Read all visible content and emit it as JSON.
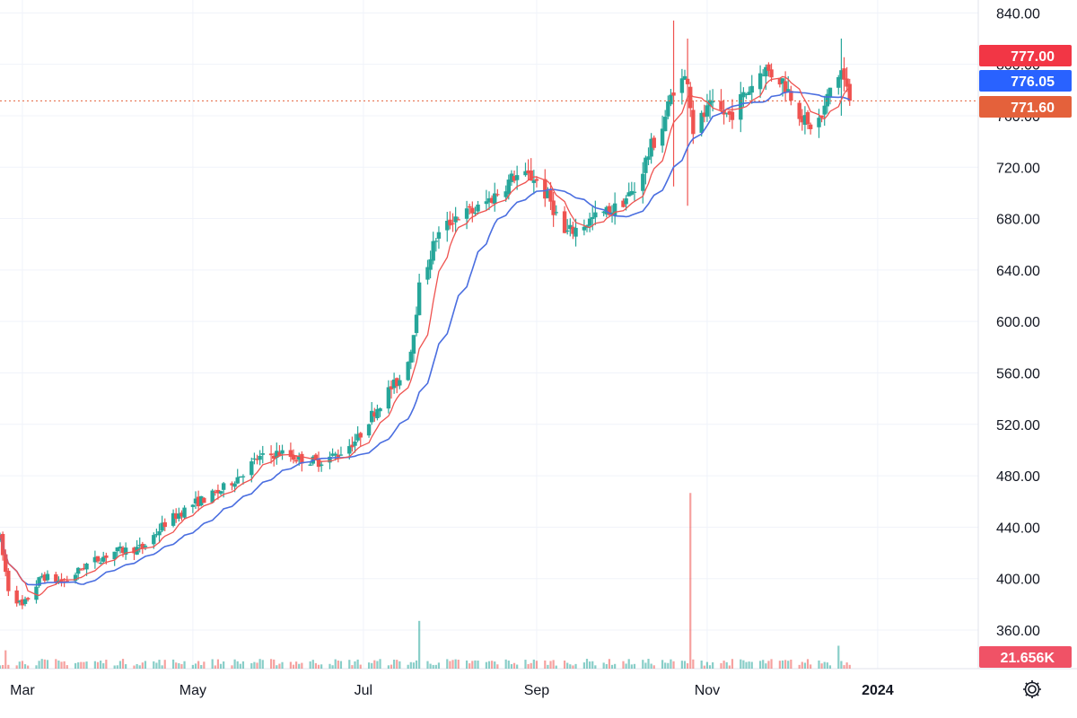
{
  "chart_data": {
    "type": "candlestick",
    "price_axis": {
      "ticks": [
        "360.00",
        "400.00",
        "440.00",
        "480.00",
        "520.00",
        "560.00",
        "600.00",
        "640.00",
        "680.00",
        "720.00",
        "760.00",
        "800.00",
        "840.00"
      ],
      "range": [
        330,
        850
      ]
    },
    "time_axis": {
      "ticks": [
        {
          "label": "Mar",
          "date": "2023-03-01",
          "bold": false
        },
        {
          "label": "May",
          "date": "2023-05-01",
          "bold": false
        },
        {
          "label": "Jul",
          "date": "2023-07-01",
          "bold": false
        },
        {
          "label": "Sep",
          "date": "2023-09-01",
          "bold": false
        },
        {
          "label": "Nov",
          "date": "2023-11-01",
          "bold": false
        },
        {
          "label": "2024",
          "date": "2024-01-01",
          "bold": true
        }
      ],
      "range": [
        "2023-02-21",
        "2024-02-06"
      ]
    },
    "price_anchors": [
      [
        "2023-02-21",
        431
      ],
      [
        "2023-02-24",
        392
      ],
      [
        "2023-03-01",
        378
      ],
      [
        "2023-03-08",
        402
      ],
      [
        "2023-03-16",
        397
      ],
      [
        "2023-03-24",
        411
      ],
      [
        "2023-04-03",
        421
      ],
      [
        "2023-04-13",
        424
      ],
      [
        "2023-04-21",
        443
      ],
      [
        "2023-05-01",
        458
      ],
      [
        "2023-05-10",
        467
      ],
      [
        "2023-05-17",
        479
      ],
      [
        "2023-05-24",
        493
      ],
      [
        "2023-06-01",
        498
      ],
      [
        "2023-06-08",
        493
      ],
      [
        "2023-06-15",
        491
      ],
      [
        "2023-06-22",
        497
      ],
      [
        "2023-06-29",
        509
      ],
      [
        "2023-07-03",
        524
      ],
      [
        "2023-07-10",
        546
      ],
      [
        "2023-07-14",
        555
      ],
      [
        "2023-07-18",
        578
      ],
      [
        "2023-07-21",
        626
      ],
      [
        "2023-07-27",
        665
      ],
      [
        "2023-08-03",
        682
      ],
      [
        "2023-08-10",
        686
      ],
      [
        "2023-08-17",
        698
      ],
      [
        "2023-08-24",
        713
      ],
      [
        "2023-08-31",
        712
      ],
      [
        "2023-09-06",
        693
      ],
      [
        "2023-09-11",
        668
      ],
      [
        "2023-09-15",
        672
      ],
      [
        "2023-09-22",
        681
      ],
      [
        "2023-09-29",
        688
      ],
      [
        "2023-10-06",
        702
      ],
      [
        "2023-10-12",
        736
      ],
      [
        "2023-10-16",
        752
      ],
      [
        "2023-10-20",
        782
      ],
      [
        "2023-10-25",
        790
      ],
      [
        "2023-10-27",
        749
      ],
      [
        "2023-11-02",
        766
      ],
      [
        "2023-11-09",
        760
      ],
      [
        "2023-11-16",
        781
      ],
      [
        "2023-11-21",
        797
      ],
      [
        "2023-11-28",
        787
      ],
      [
        "2023-12-01",
        776
      ],
      [
        "2023-12-07",
        751
      ],
      [
        "2023-12-12",
        758
      ],
      [
        "2023-12-15",
        781
      ],
      [
        "2023-12-19",
        795
      ],
      [
        "2023-12-22",
        771.6
      ]
    ],
    "spike_days": [
      [
        "2023-10-20",
        834,
        705,
        750
      ],
      [
        "2023-10-25",
        820,
        690,
        770
      ],
      [
        "2023-12-19",
        820,
        760,
        790
      ]
    ],
    "volume_axis": {
      "max_label": "21.656K"
    },
    "volume_spikes": [
      [
        "2023-10-26",
        460
      ],
      [
        "2023-07-21",
        125
      ],
      [
        "2023-12-18",
        60
      ],
      [
        "2023-02-23",
        48
      ]
    ],
    "series": [
      {
        "name": "price",
        "color_up": "#26a69a",
        "color_down": "#ef5350"
      },
      {
        "name": "ma_fast",
        "color": "#ef5350"
      },
      {
        "name": "ma_slow",
        "color": "#4a6ee0"
      }
    ],
    "last_close": "771.60",
    "badges": [
      {
        "value": "777.00",
        "color": "#f23645"
      },
      {
        "value": "776.05",
        "color": "#2962ff"
      },
      {
        "value": "771.60",
        "color": "#e4613b"
      },
      {
        "value": "21.656K",
        "color": "#f05266"
      }
    ],
    "colors": {
      "up": "#26a69a",
      "down": "#ef5350",
      "grid": "#f0f3fa",
      "price_line": "#e4613b"
    },
    "grid": true
  },
  "toolbar": {
    "settings_icon": "gear-icon"
  }
}
